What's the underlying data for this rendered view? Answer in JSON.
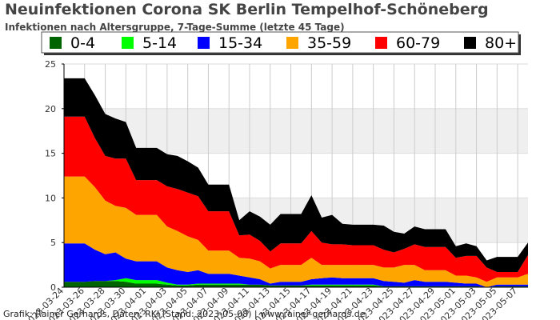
{
  "title": "Neuinfektionen Corona SK Berlin Tempelhof-Schöneberg",
  "subtitle": "Infektionen nach Altersgruppe, 7-Tage-Summe (letzte 45 Tage)",
  "footer": "Grafik: Rainer Gerhards, Daten: RKI (Stand: 2023-05-08) | www.rainer-gerhards.de",
  "chart_data": {
    "type": "area",
    "stacked": true,
    "ylim": [
      0,
      25
    ],
    "yticks": [
      0,
      5,
      10,
      15,
      20,
      25
    ],
    "grid": true,
    "legend_position": "top",
    "x": [
      "2023-03-24",
      "2023-03-25",
      "2023-03-26",
      "2023-03-27",
      "2023-03-28",
      "2023-03-29",
      "2023-03-30",
      "2023-03-31",
      "2023-04-01",
      "2023-04-02",
      "2023-04-03",
      "2023-04-04",
      "2023-04-05",
      "2023-04-06",
      "2023-04-07",
      "2023-04-08",
      "2023-04-09",
      "2023-04-10",
      "2023-04-11",
      "2023-04-12",
      "2023-04-13",
      "2023-04-14",
      "2023-04-15",
      "2023-04-16",
      "2023-04-17",
      "2023-04-18",
      "2023-04-19",
      "2023-04-20",
      "2023-04-21",
      "2023-04-22",
      "2023-04-23",
      "2023-04-24",
      "2023-04-25",
      "2023-04-26",
      "2023-04-27",
      "2023-04-28",
      "2023-04-29",
      "2023-04-30",
      "2023-05-01",
      "2023-05-02",
      "2023-05-03",
      "2023-05-04",
      "2023-05-05",
      "2023-05-06",
      "2023-05-07",
      "2023-05-08"
    ],
    "xticks": [
      "2023-03-24",
      "2023-03-26",
      "2023-03-28",
      "2023-03-30",
      "2023-04-01",
      "2023-04-03",
      "2023-04-05",
      "2023-04-07",
      "2023-04-09",
      "2023-04-11",
      "2023-04-13",
      "2023-04-15",
      "2023-04-17",
      "2023-04-19",
      "2023-04-21",
      "2023-04-23",
      "2023-04-25",
      "2023-04-27",
      "2023-04-29",
      "2023-05-01",
      "2023-05-03",
      "2023-05-05",
      "2023-05-07"
    ],
    "series": [
      {
        "name": "0-4",
        "color": "#006400",
        "values": [
          0.6,
          0.6,
          0.6,
          0.7,
          0.7,
          0.7,
          0.6,
          0.4,
          0.4,
          0.4,
          0.3,
          0.2,
          0.2,
          0.3,
          0.3,
          0.3,
          0.3,
          0.3,
          0.3,
          0.3,
          0.2,
          0.2,
          0.2,
          0.2,
          0.2,
          0.2,
          0.2,
          0.2,
          0.2,
          0.2,
          0.2,
          0.1,
          0.1,
          0.1,
          0.1,
          0.1,
          0.1,
          0.1,
          0.1,
          0.1,
          0.1,
          0,
          0.1,
          0.1,
          0.1,
          0.1
        ]
      },
      {
        "name": "5-14",
        "color": "#00ff00",
        "values": [
          0,
          0,
          0,
          0,
          0,
          0.1,
          0.4,
          0.4,
          0.4,
          0.4,
          0.2,
          0.1,
          0.1,
          0.1,
          0.1,
          0.1,
          0.1,
          0.1,
          0,
          0,
          0,
          0,
          0,
          0,
          0.1,
          0.1,
          0.1,
          0.1,
          0.1,
          0.1,
          0.1,
          0,
          0,
          0,
          0,
          0,
          0,
          0,
          0,
          0,
          0,
          0,
          0,
          0,
          0,
          0
        ]
      },
      {
        "name": "15-34",
        "color": "#0000ff",
        "values": [
          4.3,
          4.3,
          4.3,
          3.5,
          3.0,
          3.1,
          2.2,
          2.1,
          2.1,
          2.1,
          1.7,
          1.6,
          1.4,
          1.5,
          1.1,
          1.1,
          1.1,
          0.9,
          0.8,
          0.6,
          0.2,
          0.4,
          0.4,
          0.4,
          0.6,
          0.7,
          0.8,
          0.7,
          0.7,
          0.7,
          0.7,
          0.6,
          0.5,
          0.4,
          0.7,
          0.5,
          0.5,
          0.5,
          0.4,
          0.3,
          0.3,
          0,
          0.2,
          0.2,
          0.2,
          0.2
        ]
      },
      {
        "name": "35-59",
        "color": "#ffa500",
        "values": [
          7.5,
          7.5,
          7.5,
          7.0,
          6.0,
          5.2,
          5.7,
          5.2,
          5.2,
          5.2,
          4.6,
          4.4,
          4.0,
          3.4,
          2.6,
          2.6,
          2.6,
          2.0,
          2.1,
          2.0,
          1.7,
          1.9,
          1.9,
          1.9,
          2.4,
          1.5,
          1.4,
          1.5,
          1.5,
          1.5,
          1.5,
          1.5,
          1.6,
          2.0,
          1.7,
          1.3,
          1.3,
          1.3,
          0.8,
          0.9,
          0.7,
          0.6,
          0.8,
          0.8,
          0.8,
          1.2
        ]
      },
      {
        "name": "60-79",
        "color": "#ff0000",
        "values": [
          6.7,
          6.7,
          6.7,
          5.5,
          5.0,
          5.3,
          5.5,
          3.9,
          3.9,
          3.9,
          4.5,
          4.7,
          4.9,
          4.9,
          4.4,
          4.4,
          4.4,
          2.5,
          2.7,
          2.3,
          1.9,
          2.4,
          2.4,
          2.4,
          3.0,
          2.5,
          2.3,
          2.3,
          2.2,
          2.2,
          2.2,
          2.0,
          1.7,
          1.8,
          2.3,
          2.6,
          2.6,
          2.6,
          2.0,
          2.2,
          2.4,
          1.6,
          0.6,
          0.6,
          0.6,
          2.1
        ]
      },
      {
        "name": "80+",
        "color": "#000000",
        "values": [
          4.3,
          4.3,
          4.3,
          4.8,
          4.7,
          4.5,
          4.1,
          3.6,
          3.6,
          3.6,
          3.6,
          3.7,
          3.5,
          3.2,
          3.0,
          3.0,
          3.0,
          1.7,
          2.6,
          2.7,
          3.0,
          3.3,
          3.3,
          3.3,
          4.0,
          2.8,
          3.3,
          2.3,
          2.3,
          2.3,
          2.3,
          2.7,
          2.3,
          1.7,
          2.0,
          2.0,
          2.0,
          2.0,
          1.3,
          1.4,
          1.1,
          0.8,
          1.7,
          1.7,
          1.7,
          1.4
        ]
      }
    ]
  }
}
